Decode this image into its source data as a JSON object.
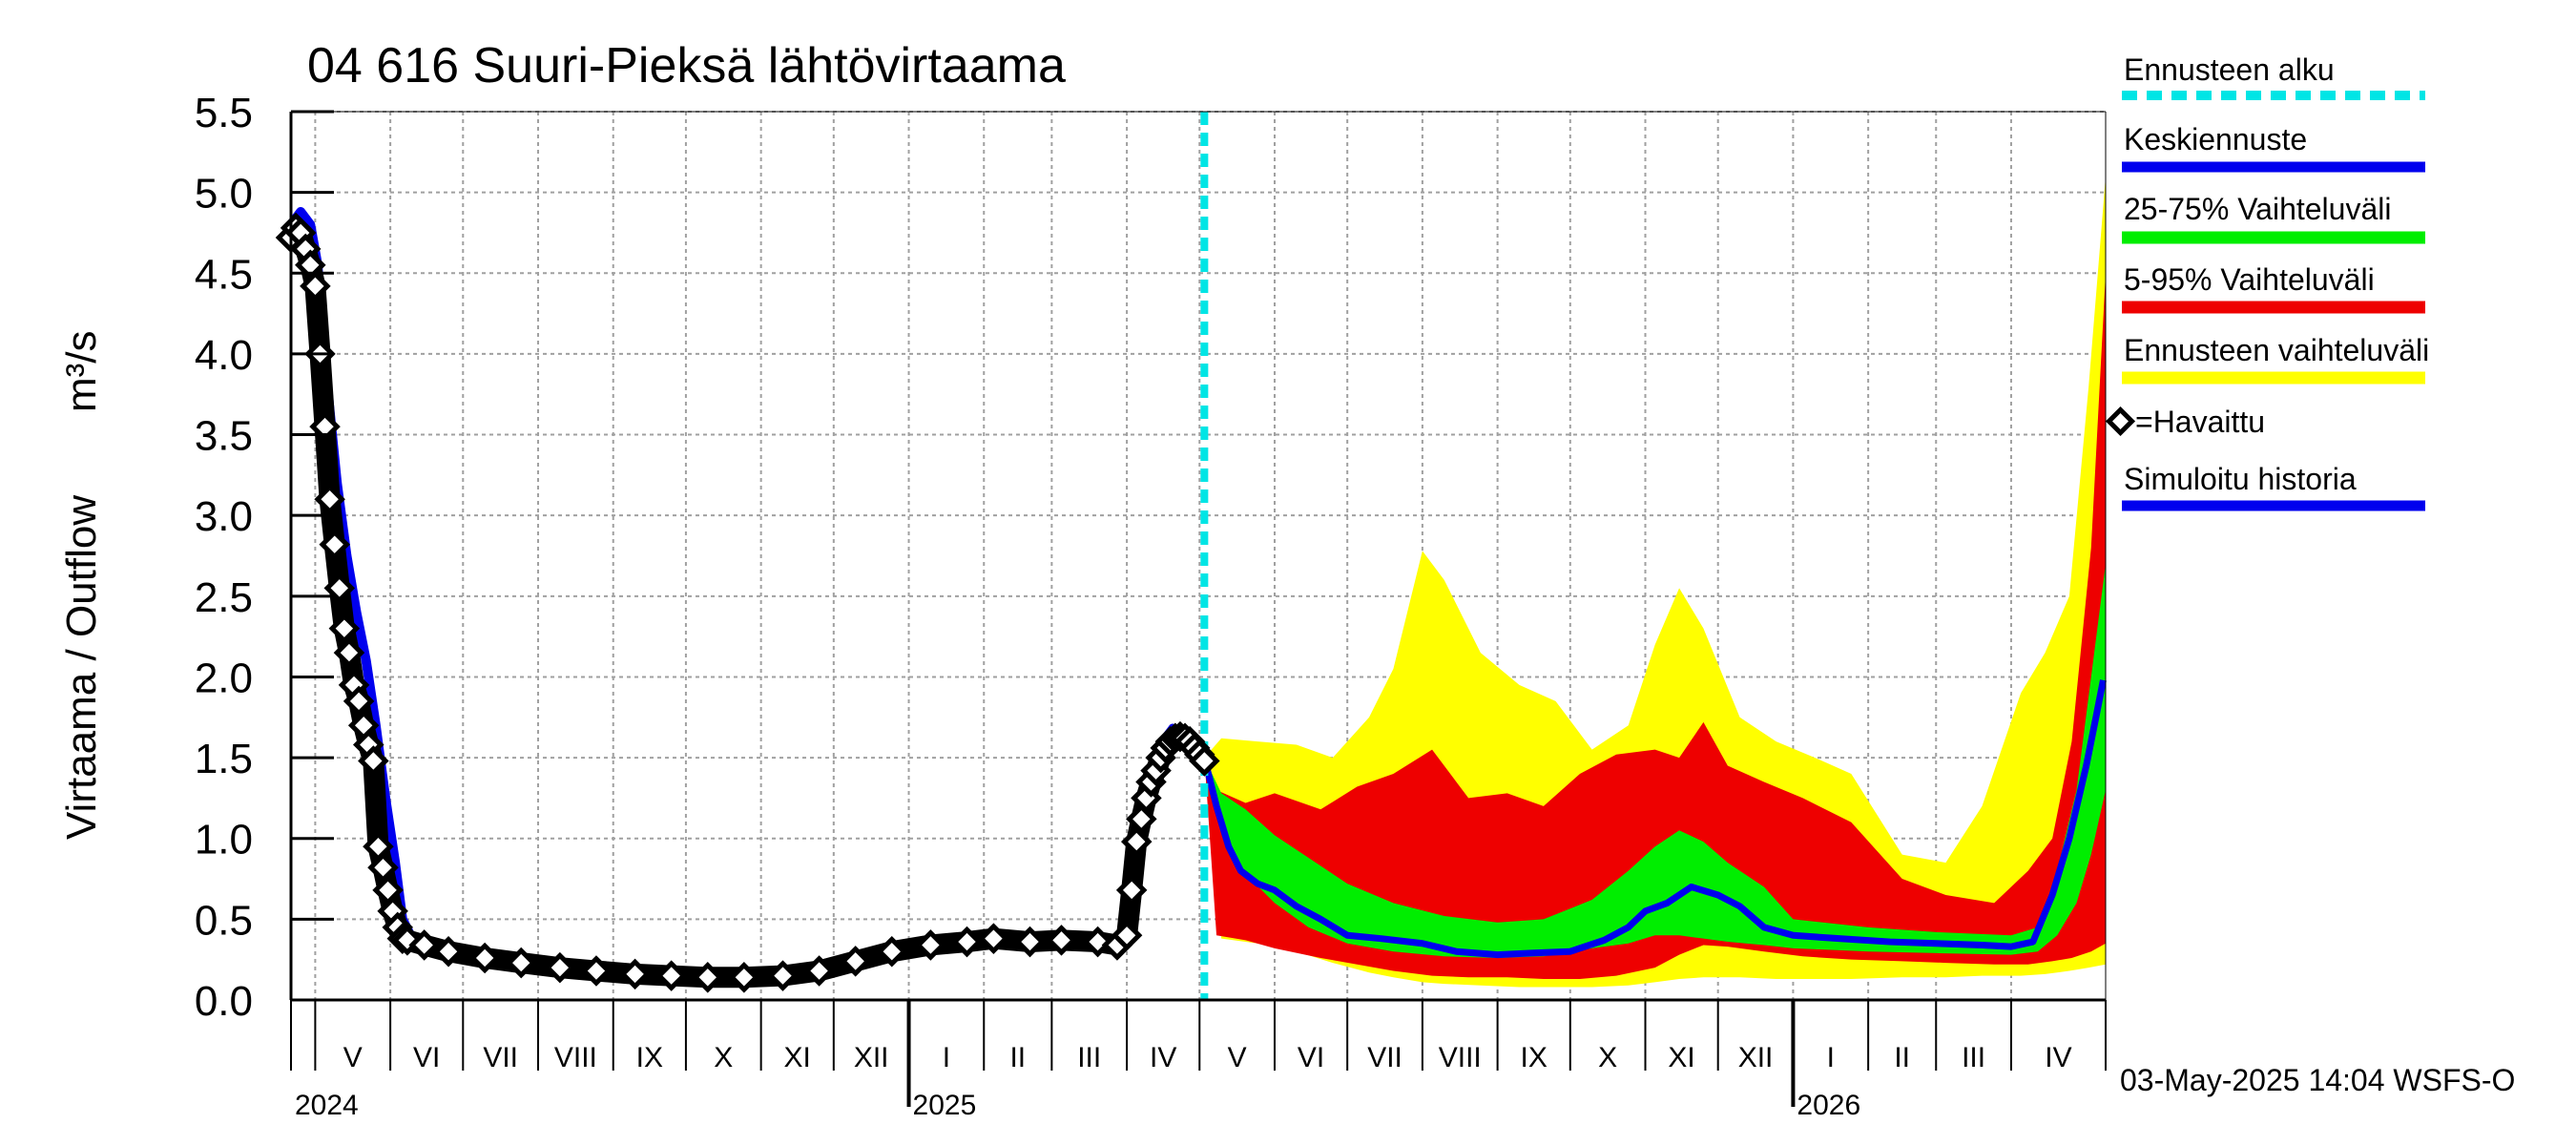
{
  "chart_data": {
    "type": "line",
    "title": "04 616 Suuri-Pieksä lähtövirtaama",
    "ylabel": "Virtaama / Outflow",
    "yunit": "m³/s",
    "ylim": [
      0.0,
      5.5
    ],
    "yticks": [
      "0.0",
      "0.5",
      "1.0",
      "1.5",
      "2.0",
      "2.5",
      "3.0",
      "3.5",
      "4.0",
      "4.5",
      "5.0",
      "5.5"
    ],
    "grid": true,
    "x_start": "2024-04-21",
    "x_end": "2026-05-10",
    "forecast_start": "2025-05-03",
    "months": [
      {
        "label": "V",
        "start": "2024-05-01"
      },
      {
        "label": "VI",
        "start": "2024-06-01"
      },
      {
        "label": "VII",
        "start": "2024-07-01"
      },
      {
        "label": "VIII",
        "start": "2024-08-01"
      },
      {
        "label": "IX",
        "start": "2024-09-01"
      },
      {
        "label": "X",
        "start": "2024-10-01"
      },
      {
        "label": "XI",
        "start": "2024-11-01"
      },
      {
        "label": "XII",
        "start": "2024-12-01"
      },
      {
        "label": "I",
        "start": "2025-01-01"
      },
      {
        "label": "II",
        "start": "2025-02-01"
      },
      {
        "label": "III",
        "start": "2025-03-01"
      },
      {
        "label": "IV",
        "start": "2025-04-01"
      },
      {
        "label": "V",
        "start": "2025-05-01"
      },
      {
        "label": "VI",
        "start": "2025-06-01"
      },
      {
        "label": "VII",
        "start": "2025-07-01"
      },
      {
        "label": "VIII",
        "start": "2025-08-01"
      },
      {
        "label": "IX",
        "start": "2025-09-01"
      },
      {
        "label": "X",
        "start": "2025-10-01"
      },
      {
        "label": "XI",
        "start": "2025-11-01"
      },
      {
        "label": "XII",
        "start": "2025-12-01"
      },
      {
        "label": "I",
        "start": "2026-01-01"
      },
      {
        "label": "II",
        "start": "2026-02-01"
      },
      {
        "label": "III",
        "start": "2026-03-01"
      },
      {
        "label": "IV",
        "start": "2026-04-01"
      }
    ],
    "years": [
      {
        "label": "2024",
        "at": "2024-04-21"
      },
      {
        "label": "2025",
        "at": "2025-01-01"
      },
      {
        "label": "2026",
        "at": "2026-01-01"
      }
    ],
    "observed": {
      "name": "Havaittu",
      "points": [
        [
          "2024-04-21",
          4.72
        ],
        [
          "2024-04-23",
          4.78
        ],
        [
          "2024-04-25",
          4.75
        ],
        [
          "2024-04-27",
          4.65
        ],
        [
          "2024-04-29",
          4.55
        ],
        [
          "2024-05-01",
          4.42
        ],
        [
          "2024-05-03",
          4.0
        ],
        [
          "2024-05-05",
          3.55
        ],
        [
          "2024-05-07",
          3.1
        ],
        [
          "2024-05-09",
          2.82
        ],
        [
          "2024-05-11",
          2.55
        ],
        [
          "2024-05-13",
          2.3
        ],
        [
          "2024-05-15",
          2.15
        ],
        [
          "2024-05-17",
          1.95
        ],
        [
          "2024-05-19",
          1.85
        ],
        [
          "2024-05-21",
          1.7
        ],
        [
          "2024-05-23",
          1.58
        ],
        [
          "2024-05-25",
          1.48
        ],
        [
          "2024-05-27",
          0.95
        ],
        [
          "2024-05-29",
          0.82
        ],
        [
          "2024-05-31",
          0.68
        ],
        [
          "2024-06-02",
          0.55
        ],
        [
          "2024-06-04",
          0.45
        ],
        [
          "2024-06-06",
          0.38
        ],
        [
          "2024-06-08",
          0.37
        ],
        [
          "2024-06-15",
          0.34
        ],
        [
          "2024-06-25",
          0.3
        ],
        [
          "2024-07-10",
          0.26
        ],
        [
          "2024-07-25",
          0.23
        ],
        [
          "2024-08-10",
          0.2
        ],
        [
          "2024-08-25",
          0.18
        ],
        [
          "2024-09-10",
          0.16
        ],
        [
          "2024-09-25",
          0.15
        ],
        [
          "2024-10-10",
          0.14
        ],
        [
          "2024-10-25",
          0.14
        ],
        [
          "2024-11-10",
          0.15
        ],
        [
          "2024-11-25",
          0.18
        ],
        [
          "2024-12-10",
          0.24
        ],
        [
          "2024-12-25",
          0.3
        ],
        [
          "2025-01-10",
          0.34
        ],
        [
          "2025-01-25",
          0.36
        ],
        [
          "2025-02-05",
          0.38
        ],
        [
          "2025-02-20",
          0.36
        ],
        [
          "2025-03-05",
          0.37
        ],
        [
          "2025-03-20",
          0.36
        ],
        [
          "2025-03-28",
          0.34
        ],
        [
          "2025-04-01",
          0.4
        ],
        [
          "2025-04-03",
          0.68
        ],
        [
          "2025-04-05",
          0.98
        ],
        [
          "2025-04-07",
          1.12
        ],
        [
          "2025-04-09",
          1.25
        ],
        [
          "2025-04-11",
          1.35
        ],
        [
          "2025-04-13",
          1.42
        ],
        [
          "2025-04-15",
          1.5
        ],
        [
          "2025-04-17",
          1.56
        ],
        [
          "2025-04-19",
          1.6
        ],
        [
          "2025-04-21",
          1.62
        ],
        [
          "2025-04-23",
          1.63
        ],
        [
          "2025-04-25",
          1.62
        ],
        [
          "2025-04-27",
          1.6
        ],
        [
          "2025-04-29",
          1.56
        ],
        [
          "2025-05-01",
          1.52
        ],
        [
          "2025-05-03",
          1.48
        ]
      ]
    },
    "simulated_history": {
      "name": "Simuloitu historia",
      "points": [
        [
          "2024-04-21",
          4.8
        ],
        [
          "2024-04-25",
          4.88
        ],
        [
          "2024-04-29",
          4.8
        ],
        [
          "2024-05-02",
          4.55
        ],
        [
          "2024-05-06",
          3.8
        ],
        [
          "2024-05-10",
          3.2
        ],
        [
          "2024-05-14",
          2.75
        ],
        [
          "2024-05-18",
          2.4
        ],
        [
          "2024-05-22",
          2.1
        ],
        [
          "2024-05-26",
          1.7
        ],
        [
          "2024-05-30",
          1.25
        ],
        [
          "2024-06-03",
          0.85
        ],
        [
          "2024-06-06",
          0.5
        ],
        [
          "2024-06-10",
          0.38
        ],
        [
          "2024-06-20",
          0.32
        ],
        [
          "2024-07-10",
          0.26
        ],
        [
          "2024-08-10",
          0.2
        ],
        [
          "2024-09-10",
          0.16
        ],
        [
          "2024-10-10",
          0.14
        ],
        [
          "2024-11-10",
          0.15
        ],
        [
          "2024-12-10",
          0.24
        ],
        [
          "2025-01-10",
          0.34
        ],
        [
          "2025-02-05",
          0.38
        ],
        [
          "2025-03-05",
          0.37
        ],
        [
          "2025-03-28",
          0.35
        ],
        [
          "2025-04-01",
          0.45
        ],
        [
          "2025-04-04",
          0.85
        ],
        [
          "2025-04-08",
          1.2
        ],
        [
          "2025-04-12",
          1.45
        ],
        [
          "2025-04-16",
          1.6
        ],
        [
          "2025-04-20",
          1.68
        ],
        [
          "2025-04-24",
          1.66
        ],
        [
          "2025-04-28",
          1.6
        ],
        [
          "2025-05-03",
          1.5
        ]
      ]
    },
    "median_forecast": {
      "name": "Keskiennuste",
      "points": [
        [
          "2025-05-03",
          1.5
        ],
        [
          "2025-05-08",
          1.2
        ],
        [
          "2025-05-13",
          0.95
        ],
        [
          "2025-05-18",
          0.8
        ],
        [
          "2025-05-25",
          0.72
        ],
        [
          "2025-06-01",
          0.68
        ],
        [
          "2025-06-10",
          0.58
        ],
        [
          "2025-06-20",
          0.5
        ],
        [
          "2025-07-01",
          0.4
        ],
        [
          "2025-07-15",
          0.38
        ],
        [
          "2025-08-01",
          0.35
        ],
        [
          "2025-08-15",
          0.3
        ],
        [
          "2025-09-01",
          0.28
        ],
        [
          "2025-09-15",
          0.29
        ],
        [
          "2025-10-01",
          0.3
        ],
        [
          "2025-10-15",
          0.37
        ],
        [
          "2025-10-25",
          0.45
        ],
        [
          "2025-11-01",
          0.55
        ],
        [
          "2025-11-10",
          0.6
        ],
        [
          "2025-11-20",
          0.7
        ],
        [
          "2025-12-01",
          0.65
        ],
        [
          "2025-12-10",
          0.58
        ],
        [
          "2025-12-20",
          0.45
        ],
        [
          "2026-01-01",
          0.4
        ],
        [
          "2026-01-20",
          0.38
        ],
        [
          "2026-02-10",
          0.36
        ],
        [
          "2026-03-01",
          0.35
        ],
        [
          "2026-03-20",
          0.34
        ],
        [
          "2026-04-01",
          0.33
        ],
        [
          "2026-04-10",
          0.36
        ],
        [
          "2026-04-18",
          0.65
        ],
        [
          "2026-04-25",
          1.0
        ],
        [
          "2026-05-02",
          1.45
        ],
        [
          "2026-05-06",
          1.75
        ],
        [
          "2026-05-09",
          1.98
        ]
      ]
    },
    "band_25_75": {
      "name": "25-75% Vaihteluväli",
      "dates": [
        "2025-05-03",
        "2025-05-10",
        "2025-05-20",
        "2025-06-01",
        "2025-06-15",
        "2025-07-01",
        "2025-07-20",
        "2025-08-10",
        "2025-09-01",
        "2025-09-20",
        "2025-10-10",
        "2025-10-25",
        "2025-11-05",
        "2025-11-15",
        "2025-11-25",
        "2025-12-05",
        "2025-12-20",
        "2026-01-01",
        "2026-02-01",
        "2026-03-01",
        "2026-04-01",
        "2026-04-12",
        "2026-04-20",
        "2026-04-28",
        "2026-05-04",
        "2026-05-10"
      ],
      "upper": [
        1.5,
        1.28,
        1.18,
        1.02,
        0.88,
        0.72,
        0.6,
        0.52,
        0.48,
        0.5,
        0.62,
        0.8,
        0.95,
        1.05,
        0.98,
        0.85,
        0.7,
        0.5,
        0.45,
        0.42,
        0.4,
        0.45,
        0.8,
        1.3,
        2.0,
        2.7
      ],
      "lower": [
        1.5,
        1.05,
        0.78,
        0.6,
        0.45,
        0.35,
        0.3,
        0.27,
        0.26,
        0.27,
        0.32,
        0.35,
        0.4,
        0.4,
        0.38,
        0.36,
        0.34,
        0.32,
        0.3,
        0.29,
        0.28,
        0.3,
        0.4,
        0.6,
        0.9,
        1.3
      ]
    },
    "band_5_95": {
      "name": "5-95% Vaihteluväli",
      "dates": [
        "2025-05-03",
        "2025-05-08",
        "2025-05-20",
        "2025-06-01",
        "2025-06-20",
        "2025-07-05",
        "2025-07-20",
        "2025-08-05",
        "2025-08-20",
        "2025-09-05",
        "2025-09-20",
        "2025-10-05",
        "2025-10-20",
        "2025-11-05",
        "2025-11-15",
        "2025-11-25",
        "2025-12-05",
        "2025-12-20",
        "2026-01-05",
        "2026-01-25",
        "2026-02-15",
        "2026-03-05",
        "2026-03-25",
        "2026-04-08",
        "2026-04-18",
        "2026-04-26",
        "2026-05-04",
        "2026-05-10"
      ],
      "upper": [
        1.5,
        1.3,
        1.22,
        1.28,
        1.18,
        1.32,
        1.4,
        1.55,
        1.25,
        1.28,
        1.2,
        1.4,
        1.52,
        1.55,
        1.5,
        1.72,
        1.45,
        1.35,
        1.25,
        1.1,
        0.75,
        0.65,
        0.6,
        0.8,
        1.0,
        1.6,
        2.8,
        4.5
      ],
      "lower": [
        1.5,
        0.4,
        0.37,
        0.32,
        0.26,
        0.22,
        0.18,
        0.15,
        0.14,
        0.14,
        0.13,
        0.13,
        0.15,
        0.2,
        0.28,
        0.34,
        0.33,
        0.3,
        0.27,
        0.25,
        0.24,
        0.23,
        0.22,
        0.22,
        0.24,
        0.26,
        0.3,
        0.35
      ]
    },
    "band_full": {
      "name": "Ennusteen vaihteluväli",
      "dates": [
        "2025-05-03",
        "2025-05-10",
        "2025-05-25",
        "2025-06-10",
        "2025-06-25",
        "2025-07-10",
        "2025-07-20",
        "2025-08-01",
        "2025-08-10",
        "2025-08-25",
        "2025-09-10",
        "2025-09-25",
        "2025-10-10",
        "2025-10-25",
        "2025-11-05",
        "2025-11-15",
        "2025-11-25",
        "2025-12-10",
        "2025-12-25",
        "2026-01-10",
        "2026-01-25",
        "2026-02-15",
        "2026-03-05",
        "2026-03-20",
        "2026-04-05",
        "2026-04-15",
        "2026-04-25",
        "2026-05-03",
        "2026-05-10"
      ],
      "upper": [
        1.5,
        1.62,
        1.6,
        1.58,
        1.5,
        1.75,
        2.05,
        2.78,
        2.6,
        2.15,
        1.95,
        1.85,
        1.55,
        1.7,
        2.2,
        2.55,
        2.3,
        1.75,
        1.6,
        1.5,
        1.4,
        0.9,
        0.85,
        1.2,
        1.9,
        2.15,
        2.5,
        3.8,
        5.1
      ],
      "lower": [
        1.5,
        0.38,
        0.35,
        0.3,
        0.23,
        0.17,
        0.14,
        0.11,
        0.1,
        0.09,
        0.08,
        0.08,
        0.08,
        0.09,
        0.11,
        0.13,
        0.14,
        0.14,
        0.13,
        0.13,
        0.13,
        0.14,
        0.14,
        0.15,
        0.15,
        0.16,
        0.18,
        0.2,
        0.22
      ]
    },
    "legend": {
      "forecast_start": "Ennusteen alku",
      "median": "Keskiennuste",
      "band_25_75": "25-75% Vaihteluväli",
      "band_5_95": "5-95% Vaihteluväli",
      "band_full": "Ennusteen vaihteluväli",
      "observed": "=Havaittu",
      "simulated": "Simuloitu historia"
    },
    "footer": "03-May-2025 14:04 WSFS-O",
    "colors": {
      "forecast_line": "#00e5e5",
      "median": "#0000ee",
      "band_25_75": "#00ee00",
      "band_5_95": "#ee0000",
      "band_full": "#ffff00",
      "observed": "#000000",
      "grid": "#a0a0a0"
    }
  }
}
